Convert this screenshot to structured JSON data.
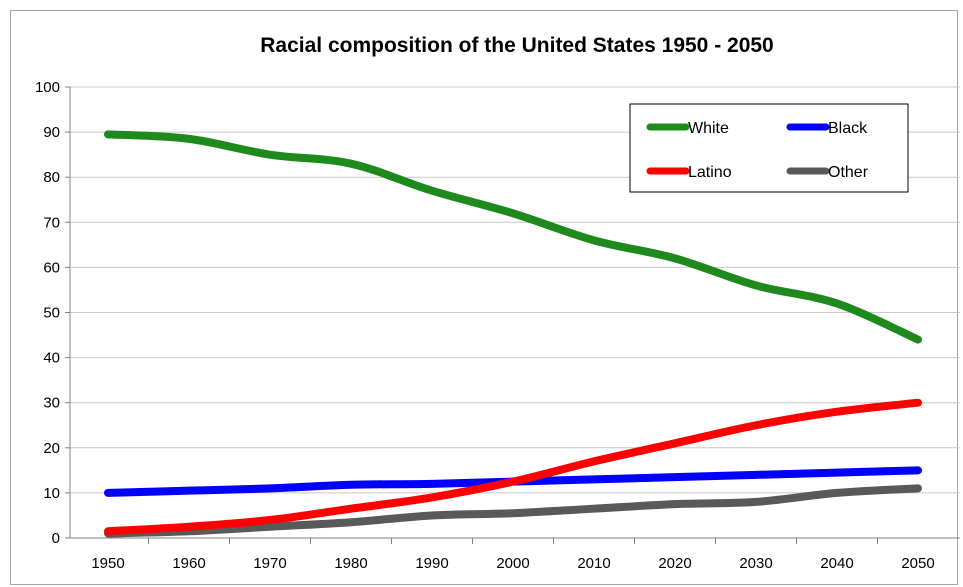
{
  "chart_data": {
    "type": "line",
    "title": "Racial composition of the United States 1950 - 2050",
    "xlabel": "",
    "ylabel": "",
    "x": [
      1950,
      1960,
      1970,
      1980,
      1990,
      2000,
      2010,
      2020,
      2030,
      2040,
      2050
    ],
    "x_tick_labels": [
      "1950",
      "1960",
      "1970",
      "1980",
      "1990",
      "2000",
      "2010",
      "2020",
      "2030",
      "2040",
      "2050"
    ],
    "y_ticks": [
      0,
      10,
      20,
      30,
      40,
      50,
      60,
      70,
      80,
      90,
      100
    ],
    "y_tick_labels": [
      "0",
      "10",
      "20",
      "30",
      "40",
      "50",
      "60",
      "70",
      "80",
      "90",
      "100"
    ],
    "ylim": [
      0,
      100
    ],
    "grid": true,
    "legend_position": "top-right",
    "series": [
      {
        "name": "White",
        "color": "#1e8a1e",
        "values": [
          89.5,
          88.5,
          85,
          83,
          77,
          72,
          66,
          62,
          56,
          52,
          44
        ]
      },
      {
        "name": "Black",
        "color": "#0000ff",
        "values": [
          10,
          10.5,
          11,
          11.8,
          12,
          12.5,
          13,
          13.5,
          14,
          14.5,
          15
        ]
      },
      {
        "name": "Latino",
        "color": "#ff0000",
        "values": [
          1.5,
          2.5,
          4,
          6.5,
          9,
          12.5,
          17,
          21,
          25,
          28,
          30
        ]
      },
      {
        "name": "Other",
        "color": "#595959",
        "values": [
          1,
          1.5,
          2.5,
          3.5,
          5,
          5.5,
          6.5,
          7.5,
          8,
          10,
          11
        ]
      }
    ]
  }
}
